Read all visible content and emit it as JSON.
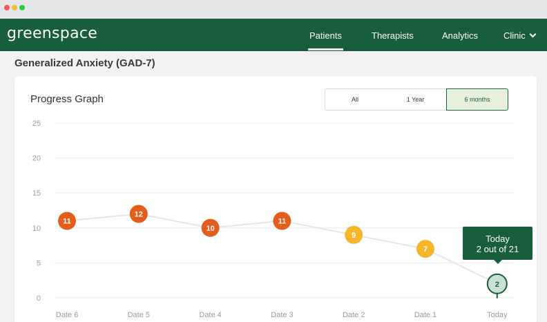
{
  "app": {
    "logo": "greenspace"
  },
  "nav": {
    "items": [
      {
        "label": "Patients",
        "active": true
      },
      {
        "label": "Therapists",
        "active": false
      },
      {
        "label": "Analytics",
        "active": false
      },
      {
        "label": "Clinic",
        "active": false
      }
    ]
  },
  "page": {
    "title": "Generalized Anxiety (GAD-7)"
  },
  "card": {
    "title": "Progress Graph",
    "filters": [
      {
        "label": "All",
        "selected": false
      },
      {
        "label": "1 Year",
        "selected": false
      },
      {
        "label": "6 months",
        "selected": true
      }
    ]
  },
  "tooltip": {
    "line1": "Today",
    "line2": "2 out of 21"
  },
  "colors": {
    "brand": "#185e3a",
    "high": "#e35d1c",
    "medium": "#f7b52b",
    "low": "#c9e0d2",
    "grid": "#ececec"
  },
  "chart_data": {
    "type": "line",
    "categories": [
      "Date 6",
      "Date 5",
      "Date 4",
      "Date 3",
      "Date 2",
      "Date 1",
      "Today"
    ],
    "values": [
      11,
      12,
      10,
      11,
      9,
      7,
      2
    ],
    "levels": [
      "high",
      "high",
      "high",
      "high",
      "medium",
      "medium",
      "low"
    ],
    "yticks": [
      0,
      5,
      10,
      15,
      20,
      25
    ],
    "ylim": [
      0,
      25
    ],
    "grid": true
  }
}
